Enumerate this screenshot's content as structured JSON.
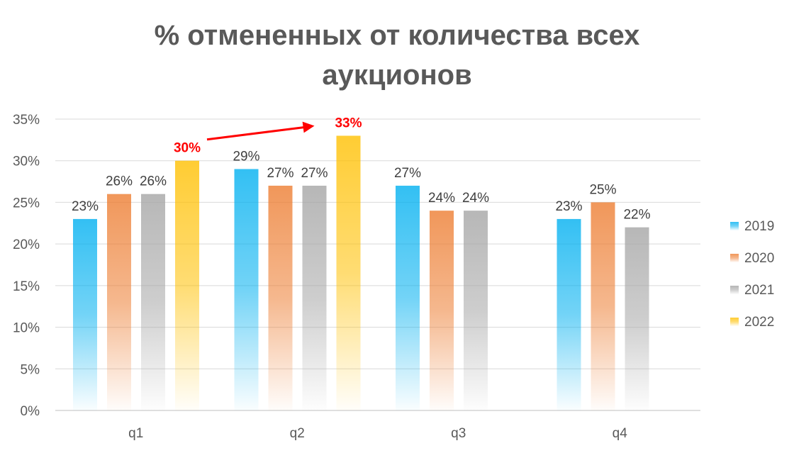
{
  "chart_data": {
    "type": "bar",
    "title": "% отмененных от количества всех аукционов",
    "xlabel": "",
    "ylabel": "",
    "categories": [
      "q1",
      "q2",
      "q3",
      "q4"
    ],
    "ylim": [
      0,
      35
    ],
    "yticks": [
      "0%",
      "5%",
      "10%",
      "15%",
      "20%",
      "25%",
      "30%",
      "35%"
    ],
    "grid": true,
    "legend_position": "right",
    "series": [
      {
        "name": "2019",
        "color": "#00B0F0",
        "values": [
          23,
          29,
          27,
          23
        ],
        "labels": [
          "23%",
          "29%",
          "27%",
          "23%"
        ]
      },
      {
        "name": "2020",
        "color": "#ED7D31",
        "values": [
          26,
          27,
          24,
          25
        ],
        "labels": [
          "26%",
          "27%",
          "24%",
          "25%"
        ]
      },
      {
        "name": "2021",
        "color": "#A5A5A5",
        "values": [
          26,
          27,
          24,
          22
        ],
        "labels": [
          "26%",
          "27%",
          "24%",
          "22%"
        ]
      },
      {
        "name": "2022",
        "color": "#FFC000",
        "values": [
          30,
          33,
          null,
          null
        ],
        "labels": [
          "30%",
          "33%",
          "",
          ""
        ]
      }
    ],
    "highlight_color": "#FF0000",
    "annotation": {
      "type": "arrow",
      "from": "q1-2022",
      "to": "q2-2022",
      "color": "#FF0000"
    }
  }
}
